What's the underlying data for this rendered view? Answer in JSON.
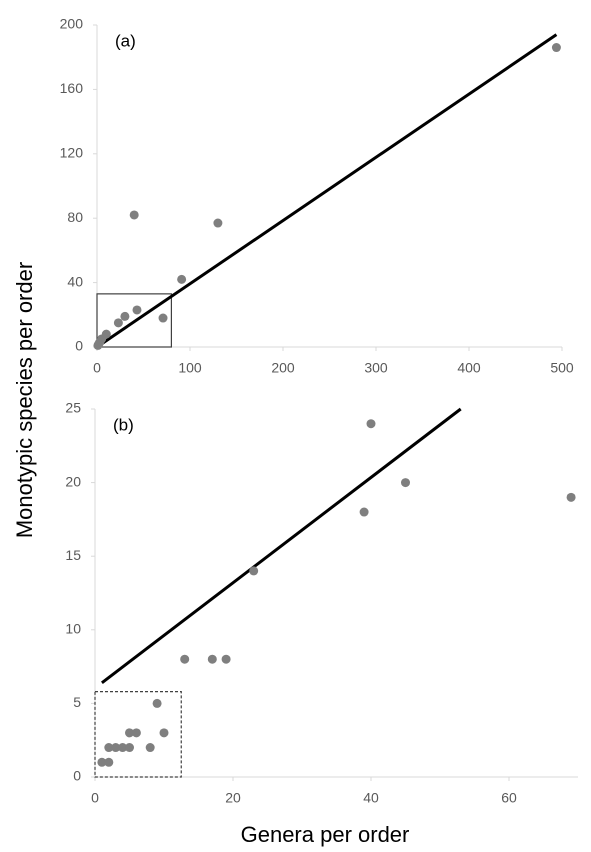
{
  "chart_data": [
    {
      "type": "scatter",
      "panel_label": "(a)",
      "ylabel": "Monotypic species per order",
      "xlim": [
        0,
        500
      ],
      "ylim": [
        0,
        200
      ],
      "xticks": [
        0,
        100,
        200,
        300,
        400,
        500
      ],
      "yticks": [
        0,
        40,
        80,
        120,
        160,
        200
      ],
      "color": "#7f7f7f",
      "grid": false,
      "x": [
        494,
        40,
        130,
        91,
        43,
        71,
        23,
        30,
        10,
        5,
        3,
        2,
        1
      ],
      "values": [
        186,
        82,
        77,
        42,
        23,
        18,
        15,
        19,
        8,
        5,
        3,
        2,
        1
      ],
      "trendline": {
        "x": [
          0,
          494
        ],
        "y": [
          0,
          194
        ]
      },
      "inset_box": {
        "x": [
          0,
          80
        ],
        "y": [
          0,
          33
        ],
        "dashed": false
      }
    },
    {
      "type": "scatter",
      "panel_label": "(b)",
      "xlabel": "Genera per order",
      "xlim": [
        0,
        70
      ],
      "ylim": [
        0,
        25
      ],
      "xticks": [
        0,
        20,
        40,
        60
      ],
      "yticks": [
        0,
        5,
        10,
        15,
        20,
        25
      ],
      "color": "#7f7f7f",
      "grid": false,
      "x": [
        40,
        45,
        39,
        69,
        23,
        13,
        17,
        19,
        1,
        2,
        2,
        3,
        4,
        5,
        5,
        6,
        8,
        9,
        10
      ],
      "values": [
        24,
        20,
        18,
        19,
        14,
        8,
        8,
        8,
        1,
        1,
        2,
        2,
        2,
        2,
        3,
        3,
        2,
        5,
        3
      ],
      "trendline": {
        "x": [
          1,
          53
        ],
        "y": [
          6.4,
          25
        ]
      },
      "inset_box": {
        "x": [
          0,
          12.5
        ],
        "y": [
          0,
          5.8
        ],
        "dashed": true
      }
    }
  ]
}
